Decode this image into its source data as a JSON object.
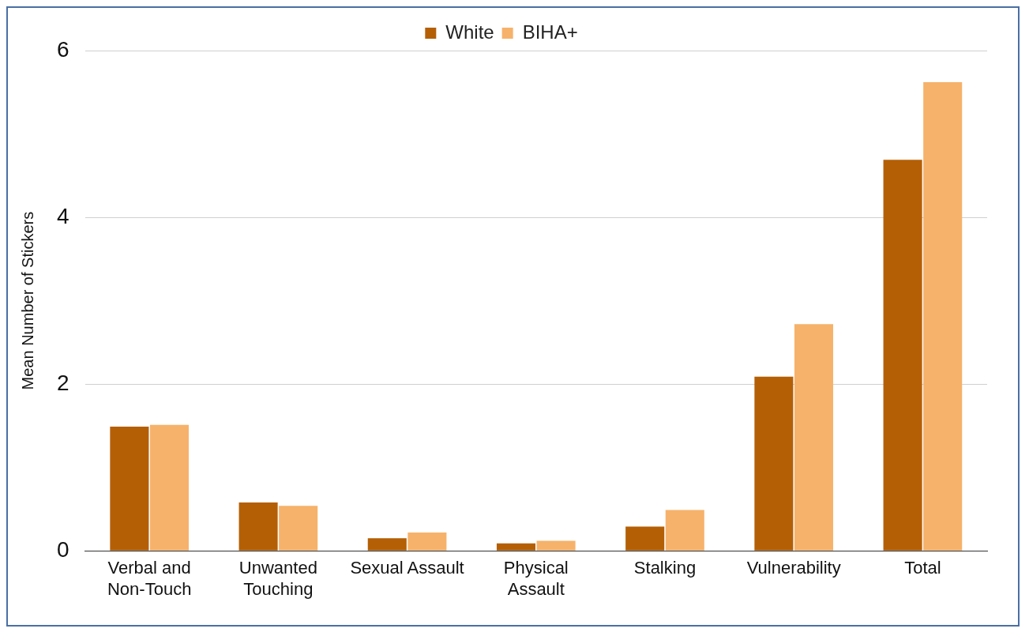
{
  "chart_data": {
    "type": "bar",
    "ylabel": "Mean Number of Stickers",
    "categories": [
      "Verbal and Non-Touch",
      "Unwanted Touching",
      "Sexual Assault",
      "Physical Assault",
      "Stalking",
      "Vulnerability",
      "Total"
    ],
    "series": [
      {
        "name": "White",
        "color": "#b45f06",
        "values": [
          1.49,
          0.58,
          0.15,
          0.09,
          0.29,
          2.09,
          4.69
        ]
      },
      {
        "name": "BIHA+",
        "color": "#f6b26b",
        "values": [
          1.51,
          0.54,
          0.22,
          0.12,
          0.49,
          2.72,
          5.62
        ]
      }
    ],
    "ylim": [
      0,
      6
    ],
    "yticks": [
      0,
      2,
      4,
      6
    ],
    "grid": "y",
    "legend": "top"
  }
}
